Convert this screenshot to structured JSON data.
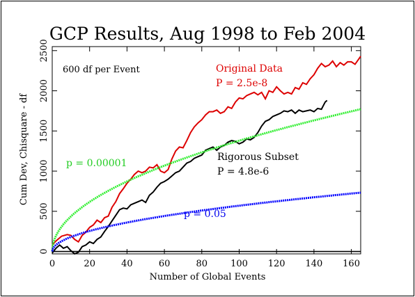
{
  "chart_data": {
    "type": "line",
    "title": "GCP Results, Aug 1998 to Feb 2004",
    "xlabel": "Number of Global Events",
    "ylabel": "Cum Dev, Chisquare - df",
    "xlim": [
      0,
      165
    ],
    "ylim": [
      -30,
      2550
    ],
    "xticks": [
      0,
      20,
      40,
      60,
      80,
      100,
      120,
      140,
      160
    ],
    "yticks": [
      0,
      500,
      1000,
      1500,
      2000,
      2500
    ],
    "grid": false,
    "zero_line": true,
    "annotations": {
      "df_note": "600 df per Event",
      "original_label": "Original Data",
      "original_p": "P = 2.5e-8",
      "rigorous_label": "Rigorous Subset",
      "rigorous_p": "P = 4.8e-6",
      "green_label": "p = 0.00001",
      "blue_label": "p = 0.05"
    },
    "series": [
      {
        "color": "#dd0000",
        "x": [
          0,
          2,
          5,
          8,
          10,
          12,
          14,
          16,
          18,
          20,
          22,
          24,
          26,
          28,
          30,
          32,
          34,
          36,
          38,
          40,
          42,
          44,
          46,
          48,
          50,
          52,
          54,
          56,
          58,
          60,
          62,
          64,
          66,
          68,
          70,
          72,
          74,
          76,
          78,
          80,
          82,
          84,
          86,
          88,
          90,
          92,
          94,
          96,
          98,
          100,
          102,
          104,
          106,
          108,
          110,
          112,
          114,
          116,
          118,
          120,
          122,
          124,
          126,
          128,
          130,
          132,
          134,
          136,
          138,
          140,
          142,
          144,
          146,
          148,
          150,
          152,
          154,
          156,
          158,
          160,
          162,
          165
        ],
        "y": [
          80,
          130,
          190,
          210,
          200,
          150,
          120,
          200,
          240,
          300,
          330,
          390,
          360,
          420,
          440,
          550,
          620,
          720,
          780,
          850,
          900,
          960,
          1000,
          980,
          1000,
          1050,
          1040,
          1080,
          1000,
          980,
          1020,
          1150,
          1250,
          1300,
          1290,
          1380,
          1480,
          1550,
          1600,
          1640,
          1700,
          1740,
          1740,
          1760,
          1720,
          1740,
          1800,
          1780,
          1860,
          1910,
          1900,
          1940,
          1960,
          1980,
          1950,
          1980,
          1900,
          2000,
          1980,
          2050,
          2000,
          1960,
          1980,
          1960,
          2040,
          2020,
          2100,
          2080,
          2150,
          2200,
          2280,
          2340,
          2300,
          2320,
          2370,
          2300,
          2350,
          2320,
          2360,
          2360,
          2330,
          2430
        ]
      },
      {
        "color": "#000000",
        "x": [
          0,
          2,
          4,
          6,
          8,
          10,
          12,
          14,
          16,
          18,
          20,
          22,
          24,
          26,
          28,
          30,
          32,
          34,
          36,
          38,
          40,
          42,
          44,
          46,
          48,
          50,
          52,
          54,
          56,
          58,
          60,
          62,
          64,
          66,
          68,
          70,
          72,
          74,
          76,
          78,
          80,
          82,
          84,
          86,
          88,
          90,
          92,
          94,
          96,
          98,
          100,
          102,
          104,
          106,
          108,
          110,
          112,
          114,
          116,
          118,
          120,
          122,
          124,
          126,
          128,
          130,
          132,
          134,
          136,
          138,
          140,
          142,
          144,
          146,
          147
        ],
        "y": [
          -20,
          40,
          80,
          40,
          60,
          10,
          -30,
          -10,
          60,
          80,
          120,
          100,
          150,
          180,
          250,
          310,
          380,
          450,
          520,
          540,
          530,
          580,
          600,
          620,
          640,
          610,
          700,
          740,
          800,
          850,
          870,
          900,
          940,
          980,
          1000,
          1050,
          1100,
          1120,
          1160,
          1180,
          1200,
          1260,
          1280,
          1300,
          1260,
          1300,
          1320,
          1360,
          1380,
          1370,
          1340,
          1360,
          1400,
          1390,
          1420,
          1480,
          1560,
          1620,
          1640,
          1680,
          1700,
          1720,
          1750,
          1740,
          1760,
          1720,
          1760,
          1740,
          1750,
          1760,
          1740,
          1780,
          1770,
          1860,
          1880
        ]
      },
      {
        "color": "#33ee33",
        "function": "3.98*sqrt(1200*x)",
        "x_range": [
          0,
          165
        ]
      },
      {
        "color": "#0000ff",
        "function": "1.645*sqrt(1200*x)",
        "x_range": [
          0,
          165
        ]
      }
    ]
  }
}
